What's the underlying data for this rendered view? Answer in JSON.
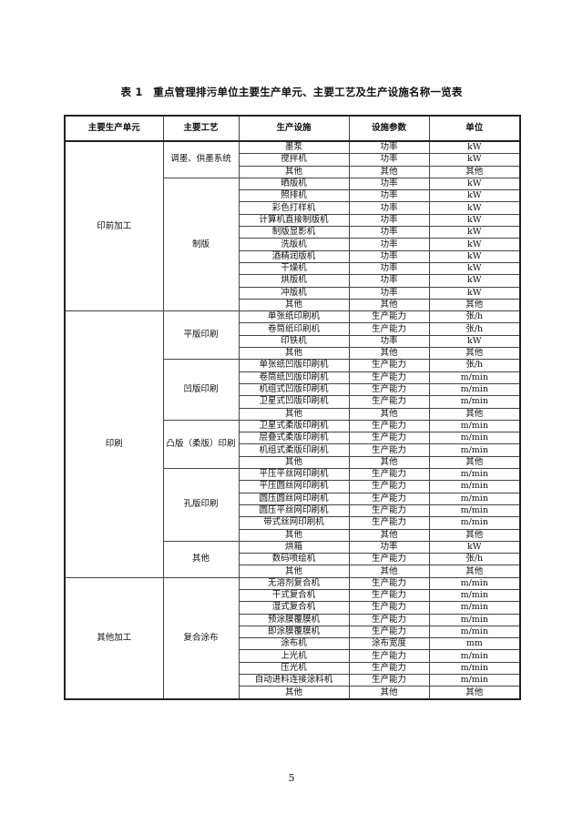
{
  "title": "表 1　重点管理排污单位主要生产单元、主要工艺及生产设施名称一览表",
  "headers": [
    "主要生产单元",
    "主要工艺",
    "生产设施",
    "设施参数",
    "单位"
  ],
  "units": [
    {
      "name": "印前加工",
      "processes": [
        {
          "name": "调墨、供墨系统",
          "facilities": [
            [
              "墨泵",
              "功率",
              "kW"
            ],
            [
              "搅拌机",
              "功率",
              "kW"
            ],
            [
              "其他",
              "其他",
              "其他"
            ]
          ]
        },
        {
          "name": "制版",
          "facilities": [
            [
              "晒版机",
              "功率",
              "kW"
            ],
            [
              "照排机",
              "功率",
              "kW"
            ],
            [
              "彩色打样机",
              "功率",
              "kW"
            ],
            [
              "计算机直接制版机",
              "功率",
              "kW"
            ],
            [
              "制版显影机",
              "功率",
              "kW"
            ],
            [
              "洗版机",
              "功率",
              "kW"
            ],
            [
              "酒精润版机",
              "功率",
              "kW"
            ],
            [
              "干燥机",
              "功率",
              "kW"
            ],
            [
              "烘版机",
              "功率",
              "kW"
            ],
            [
              "冲版机",
              "功率",
              "kW"
            ],
            [
              "其他",
              "其他",
              "其他"
            ]
          ]
        }
      ]
    },
    {
      "name": "印刷",
      "processes": [
        {
          "name": "平版印刷",
          "facilities": [
            [
              "单张纸印刷机",
              "生产能力",
              "张/h"
            ],
            [
              "卷筒纸印刷机",
              "生产能力",
              "张/h"
            ],
            [
              "印铁机",
              "功率",
              "kW"
            ],
            [
              "其他",
              "其他",
              "其他"
            ]
          ]
        },
        {
          "name": "凹版印刷",
          "facilities": [
            [
              "单张纸凹版印刷机",
              "生产能力",
              "张/h"
            ],
            [
              "卷筒纸凹版印刷机",
              "生产能力",
              "m/min"
            ],
            [
              "机组式凹版印刷机",
              "生产能力",
              "m/min"
            ],
            [
              "卫星式凹版印刷机",
              "生产能力",
              "m/min"
            ],
            [
              "其他",
              "其他",
              "其他"
            ]
          ]
        },
        {
          "name": "凸版（柔版）印刷",
          "facilities": [
            [
              "卫星式柔版印刷机",
              "生产能力",
              "m/min"
            ],
            [
              "层叠式柔版印刷机",
              "生产能力",
              "m/min"
            ],
            [
              "机组式柔版印刷机",
              "生产能力",
              "m/min"
            ],
            [
              "其他",
              "其他",
              "其他"
            ]
          ]
        },
        {
          "name": "孔版印刷",
          "facilities": [
            [
              "平压平丝网印刷机",
              "生产能力",
              "m/min"
            ],
            [
              "平压圆丝网印刷机",
              "生产能力",
              "m/min"
            ],
            [
              "圆压圆丝网印刷机",
              "生产能力",
              "m/min"
            ],
            [
              "圆压平丝网印刷机",
              "生产能力",
              "m/min"
            ],
            [
              "带式丝网印刷机",
              "生产能力",
              "m/min"
            ],
            [
              "其他",
              "其他",
              "其他"
            ]
          ]
        },
        {
          "name": "其他",
          "facilities": [
            [
              "烘箱",
              "功率",
              "kW"
            ],
            [
              "数码喷绘机",
              "生产能力",
              "张/h"
            ],
            [
              "其他",
              "其他",
              "其他"
            ]
          ]
        }
      ]
    },
    {
      "name": "其他加工",
      "processes": [
        {
          "name": "复合涂布",
          "facilities": [
            [
              "无溶剂复合机",
              "生产能力",
              "m/min"
            ],
            [
              "干式复合机",
              "生产能力",
              "m/min"
            ],
            [
              "湿式复合机",
              "生产能力",
              "m/min"
            ],
            [
              "预涂膜覆膜机",
              "生产能力",
              "m/min"
            ],
            [
              "即涂膜覆膜机",
              "生产能力",
              "m/min"
            ],
            [
              "涂布机",
              "涂布宽度",
              "mm"
            ],
            [
              "上光机",
              "生产能力",
              "m/min"
            ],
            [
              "压光机",
              "生产能力",
              "m/min"
            ],
            [
              "自动进料连接涂料机",
              "生产能力",
              "m/min"
            ],
            [
              "其他",
              "其他",
              "其他"
            ]
          ]
        }
      ]
    }
  ],
  "page_number": "5"
}
